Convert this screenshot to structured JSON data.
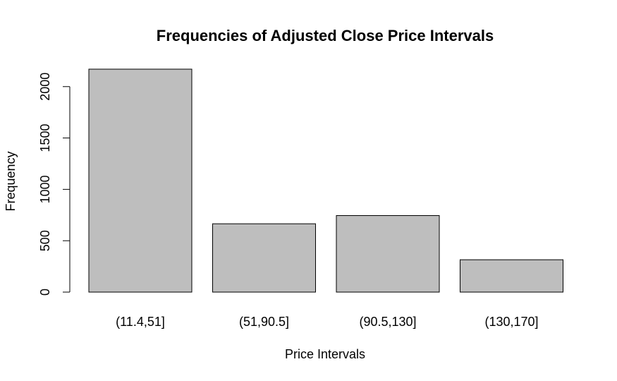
{
  "chart_data": {
    "type": "bar",
    "title": "Frequencies of Adjusted Close Price Intervals",
    "xlabel": "Price Intervals",
    "ylabel": "Frequency",
    "categories": [
      "(11.4,51]",
      "(51,90.5]",
      "(90.5,130]",
      "(130,170]"
    ],
    "values": [
      2170,
      665,
      745,
      315
    ],
    "ylim": [
      0,
      2170
    ],
    "yticks": [
      0,
      500,
      1000,
      1500,
      2000
    ],
    "bar_color": "#bebebe",
    "grid": false,
    "legend": false
  }
}
